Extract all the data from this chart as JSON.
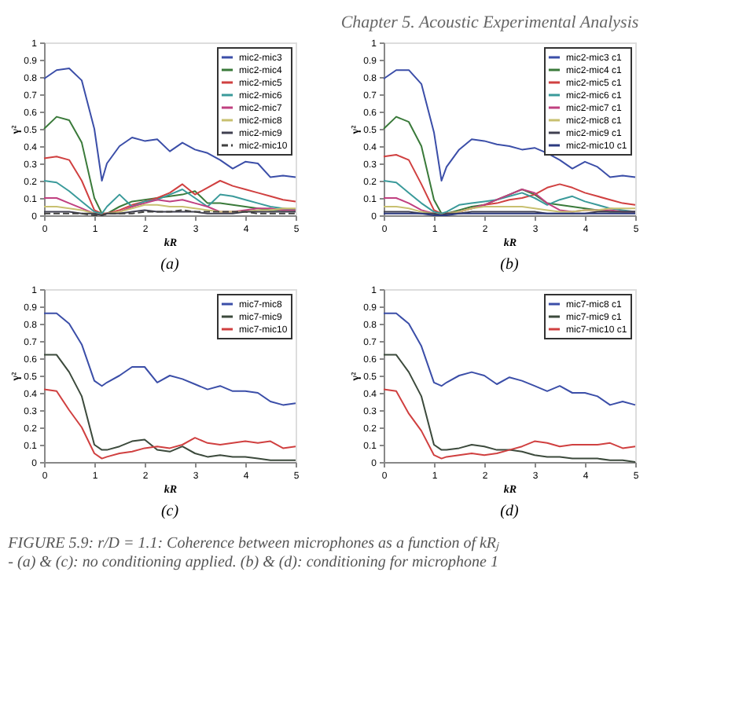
{
  "chart_data": [
    {
      "type": "line",
      "title": "(a)",
      "xlabel": "kR",
      "ylabel": "γ²",
      "annotations": [
        "Chapter 5. Acoustic Experimental Analysis"
      ],
      "x": [
        0,
        0.25,
        0.5,
        0.75,
        1,
        1.15,
        1.25,
        1.5,
        1.75,
        2,
        2.25,
        2.5,
        2.75,
        3,
        3.25,
        3.5,
        3.75,
        4,
        4.25,
        4.5,
        4.75,
        5
      ],
      "xlim": [
        0,
        5
      ],
      "xticks": [
        0,
        1,
        2,
        3,
        4,
        5
      ],
      "ylim": [
        0,
        1
      ],
      "yticks": [
        0,
        0.1,
        0.2,
        0.3,
        0.4,
        0.5,
        0.6,
        0.7,
        0.8,
        0.9,
        1
      ],
      "grid": false,
      "legend": "top right",
      "marker": "none",
      "series": [
        {
          "name": "mic2-mic3",
          "color": "#3b4ea8",
          "values": [
            0.79,
            0.84,
            0.85,
            0.78,
            0.5,
            0.2,
            0.3,
            0.4,
            0.45,
            0.43,
            0.44,
            0.37,
            0.42,
            0.38,
            0.36,
            0.32,
            0.27,
            0.31,
            0.3,
            0.22,
            0.23,
            0.22
          ]
        },
        {
          "name": "mic2-mic4",
          "color": "#3a7a3a",
          "values": [
            0.5,
            0.57,
            0.55,
            0.42,
            0.1,
            0.01,
            0.01,
            0.05,
            0.08,
            0.09,
            0.1,
            0.11,
            0.12,
            0.14,
            0.07,
            0.07,
            0.06,
            0.05,
            0.04,
            0.03,
            0.03,
            0.03
          ]
        },
        {
          "name": "mic2-mic5",
          "color": "#d04040",
          "values": [
            0.33,
            0.34,
            0.32,
            0.2,
            0.03,
            0.01,
            0.01,
            0.03,
            0.06,
            0.08,
            0.1,
            0.13,
            0.18,
            0.12,
            0.16,
            0.2,
            0.17,
            0.15,
            0.13,
            0.11,
            0.09,
            0.08
          ]
        },
        {
          "name": "mic2-mic6",
          "color": "#3a9a9a",
          "values": [
            0.2,
            0.19,
            0.14,
            0.08,
            0.02,
            0.01,
            0.05,
            0.12,
            0.05,
            0.08,
            0.09,
            0.12,
            0.15,
            0.1,
            0.05,
            0.12,
            0.11,
            0.09,
            0.07,
            0.05,
            0.04,
            0.03
          ]
        },
        {
          "name": "mic2-mic7",
          "color": "#c04080",
          "values": [
            0.1,
            0.1,
            0.07,
            0.04,
            0.01,
            0.0,
            0.01,
            0.02,
            0.05,
            0.07,
            0.09,
            0.08,
            0.09,
            0.07,
            0.05,
            0.02,
            0.02,
            0.03,
            0.04,
            0.04,
            0.03,
            0.03
          ]
        },
        {
          "name": "mic2-mic8",
          "color": "#c8c070",
          "values": [
            0.05,
            0.05,
            0.04,
            0.03,
            0.01,
            0.0,
            0.01,
            0.02,
            0.04,
            0.06,
            0.06,
            0.05,
            0.05,
            0.04,
            0.03,
            0.02,
            0.02,
            0.02,
            0.03,
            0.03,
            0.04,
            0.04
          ]
        },
        {
          "name": "mic2-mic9",
          "color": "#404050",
          "values": [
            0.02,
            0.02,
            0.02,
            0.01,
            0.01,
            0.0,
            0.01,
            0.01,
            0.02,
            0.03,
            0.02,
            0.02,
            0.02,
            0.02,
            0.01,
            0.01,
            0.01,
            0.02,
            0.02,
            0.02,
            0.02,
            0.02
          ]
        },
        {
          "name": "mic2-mic10",
          "color": "#404040",
          "line_style": "dashed",
          "values": [
            0.01,
            0.01,
            0.01,
            0.01,
            0.0,
            0.0,
            0.01,
            0.01,
            0.01,
            0.02,
            0.02,
            0.02,
            0.03,
            0.02,
            0.02,
            0.02,
            0.02,
            0.02,
            0.01,
            0.01,
            0.01,
            0.01
          ]
        }
      ]
    },
    {
      "type": "line",
      "title": "(b)",
      "xlabel": "kR",
      "ylabel": "γ²",
      "x": [
        0,
        0.25,
        0.5,
        0.75,
        1,
        1.15,
        1.25,
        1.5,
        1.75,
        2,
        2.25,
        2.5,
        2.75,
        3,
        3.25,
        3.5,
        3.75,
        4,
        4.25,
        4.5,
        4.75,
        5
      ],
      "xlim": [
        0,
        5
      ],
      "xticks": [
        0,
        1,
        2,
        3,
        4,
        5
      ],
      "ylim": [
        0,
        1
      ],
      "yticks": [
        0,
        0.1,
        0.2,
        0.3,
        0.4,
        0.5,
        0.6,
        0.7,
        0.8,
        0.9,
        1
      ],
      "grid": false,
      "legend": "top right",
      "marker": "none",
      "series": [
        {
          "name": "mic2-mic3 c1",
          "color": "#3b4ea8",
          "values": [
            0.79,
            0.84,
            0.84,
            0.76,
            0.48,
            0.2,
            0.28,
            0.38,
            0.44,
            0.43,
            0.41,
            0.4,
            0.38,
            0.39,
            0.36,
            0.32,
            0.27,
            0.31,
            0.28,
            0.22,
            0.23,
            0.22
          ]
        },
        {
          "name": "mic2-mic4 c1",
          "color": "#3a7a3a",
          "values": [
            0.5,
            0.57,
            0.54,
            0.4,
            0.09,
            0.01,
            0.01,
            0.03,
            0.05,
            0.06,
            0.09,
            0.12,
            0.15,
            0.12,
            0.07,
            0.06,
            0.05,
            0.04,
            0.03,
            0.02,
            0.02,
            0.02
          ]
        },
        {
          "name": "mic2-mic5 c1",
          "color": "#d04040",
          "values": [
            0.34,
            0.35,
            0.32,
            0.18,
            0.03,
            0.01,
            0.01,
            0.02,
            0.04,
            0.06,
            0.07,
            0.09,
            0.1,
            0.12,
            0.16,
            0.18,
            0.16,
            0.13,
            0.11,
            0.09,
            0.07,
            0.06
          ]
        },
        {
          "name": "mic2-mic6 c1",
          "color": "#3a9a9a",
          "values": [
            0.2,
            0.19,
            0.13,
            0.07,
            0.02,
            0.01,
            0.02,
            0.06,
            0.07,
            0.08,
            0.09,
            0.11,
            0.13,
            0.1,
            0.06,
            0.09,
            0.11,
            0.08,
            0.06,
            0.04,
            0.03,
            0.02
          ]
        },
        {
          "name": "mic2-mic7 c1",
          "color": "#c04080",
          "values": [
            0.1,
            0.1,
            0.07,
            0.03,
            0.01,
            0.0,
            0.01,
            0.02,
            0.04,
            0.06,
            0.09,
            0.12,
            0.15,
            0.13,
            0.07,
            0.03,
            0.02,
            0.03,
            0.03,
            0.03,
            0.02,
            0.02
          ]
        },
        {
          "name": "mic2-mic8 c1",
          "color": "#c8c070",
          "values": [
            0.05,
            0.05,
            0.04,
            0.02,
            0.01,
            0.0,
            0.01,
            0.02,
            0.04,
            0.05,
            0.05,
            0.05,
            0.05,
            0.04,
            0.03,
            0.02,
            0.02,
            0.03,
            0.03,
            0.04,
            0.04,
            0.04
          ]
        },
        {
          "name": "mic2-mic9 c1",
          "color": "#404050",
          "values": [
            0.02,
            0.02,
            0.02,
            0.01,
            0.01,
            0.0,
            0.01,
            0.01,
            0.02,
            0.02,
            0.02,
            0.02,
            0.02,
            0.02,
            0.01,
            0.01,
            0.01,
            0.01,
            0.02,
            0.02,
            0.02,
            0.02
          ]
        },
        {
          "name": "mic2-mic10 c1",
          "color": "#2c3a80",
          "values": [
            0.01,
            0.01,
            0.01,
            0.01,
            0.0,
            0.0,
            0.0,
            0.01,
            0.01,
            0.01,
            0.01,
            0.01,
            0.01,
            0.01,
            0.01,
            0.01,
            0.01,
            0.01,
            0.01,
            0.01,
            0.01,
            0.01
          ]
        }
      ]
    },
    {
      "type": "line",
      "title": "(c)",
      "xlabel": "kR",
      "ylabel": "γ²",
      "x": [
        0,
        0.25,
        0.5,
        0.75,
        1,
        1.15,
        1.25,
        1.5,
        1.75,
        2,
        2.25,
        2.5,
        2.75,
        3,
        3.25,
        3.5,
        3.75,
        4,
        4.25,
        4.5,
        4.75,
        5
      ],
      "xlim": [
        0,
        5
      ],
      "xticks": [
        0,
        1,
        2,
        3,
        4,
        5
      ],
      "ylim": [
        0,
        1
      ],
      "yticks": [
        0,
        0.1,
        0.2,
        0.3,
        0.4,
        0.5,
        0.6,
        0.7,
        0.8,
        0.9,
        1
      ],
      "grid": false,
      "legend": "top right",
      "marker": "none",
      "series": [
        {
          "name": "mic7-mic8",
          "color": "#3b4ea8",
          "values": [
            0.86,
            0.86,
            0.8,
            0.68,
            0.47,
            0.44,
            0.46,
            0.5,
            0.55,
            0.55,
            0.46,
            0.5,
            0.48,
            0.45,
            0.42,
            0.44,
            0.41,
            0.41,
            0.4,
            0.35,
            0.33,
            0.34
          ]
        },
        {
          "name": "mic7-mic9",
          "color": "#3c4a3c",
          "values": [
            0.62,
            0.62,
            0.52,
            0.38,
            0.1,
            0.07,
            0.07,
            0.09,
            0.12,
            0.13,
            0.07,
            0.06,
            0.09,
            0.05,
            0.03,
            0.04,
            0.03,
            0.03,
            0.02,
            0.01,
            0.01,
            0.01
          ]
        },
        {
          "name": "mic7-mic10",
          "color": "#d04040",
          "values": [
            0.42,
            0.41,
            0.3,
            0.2,
            0.05,
            0.02,
            0.03,
            0.05,
            0.06,
            0.08,
            0.09,
            0.08,
            0.1,
            0.14,
            0.11,
            0.1,
            0.11,
            0.12,
            0.11,
            0.12,
            0.08,
            0.09
          ]
        }
      ]
    },
    {
      "type": "line",
      "title": "(d)",
      "xlabel": "kR",
      "ylabel": "γ²",
      "annotations": [
        "FIGURE 5.9: r/D = 1.1: Coherence between microphones as a function of kRⱼ",
        "- (a) & (c): no conditioning applied. (b) & (d): conditioning for microphone 1"
      ],
      "x": [
        0,
        0.25,
        0.5,
        0.75,
        1,
        1.15,
        1.25,
        1.5,
        1.75,
        2,
        2.25,
        2.5,
        2.75,
        3,
        3.25,
        3.5,
        3.75,
        4,
        4.25,
        4.5,
        4.75,
        5
      ],
      "xlim": [
        0,
        5
      ],
      "xticks": [
        0,
        1,
        2,
        3,
        4,
        5
      ],
      "ylim": [
        0,
        1
      ],
      "yticks": [
        0,
        0.1,
        0.2,
        0.3,
        0.4,
        0.5,
        0.6,
        0.7,
        0.8,
        0.9,
        1
      ],
      "grid": false,
      "legend": "top right",
      "marker": "none",
      "series": [
        {
          "name": "mic7-mic8 c1",
          "color": "#3b4ea8",
          "values": [
            0.86,
            0.86,
            0.8,
            0.67,
            0.46,
            0.44,
            0.46,
            0.5,
            0.52,
            0.5,
            0.45,
            0.49,
            0.47,
            0.44,
            0.41,
            0.44,
            0.4,
            0.4,
            0.38,
            0.33,
            0.35,
            0.33
          ]
        },
        {
          "name": "mic7-mic9 c1",
          "color": "#3c4a3c",
          "values": [
            0.62,
            0.62,
            0.52,
            0.38,
            0.1,
            0.07,
            0.07,
            0.08,
            0.1,
            0.09,
            0.07,
            0.07,
            0.06,
            0.04,
            0.03,
            0.03,
            0.02,
            0.02,
            0.02,
            0.01,
            0.01,
            0.0
          ]
        },
        {
          "name": "mic7-mic10 c1",
          "color": "#d04040",
          "values": [
            0.42,
            0.41,
            0.28,
            0.18,
            0.04,
            0.02,
            0.03,
            0.04,
            0.05,
            0.04,
            0.05,
            0.07,
            0.09,
            0.12,
            0.11,
            0.09,
            0.1,
            0.1,
            0.1,
            0.11,
            0.08,
            0.09
          ]
        }
      ]
    }
  ]
}
